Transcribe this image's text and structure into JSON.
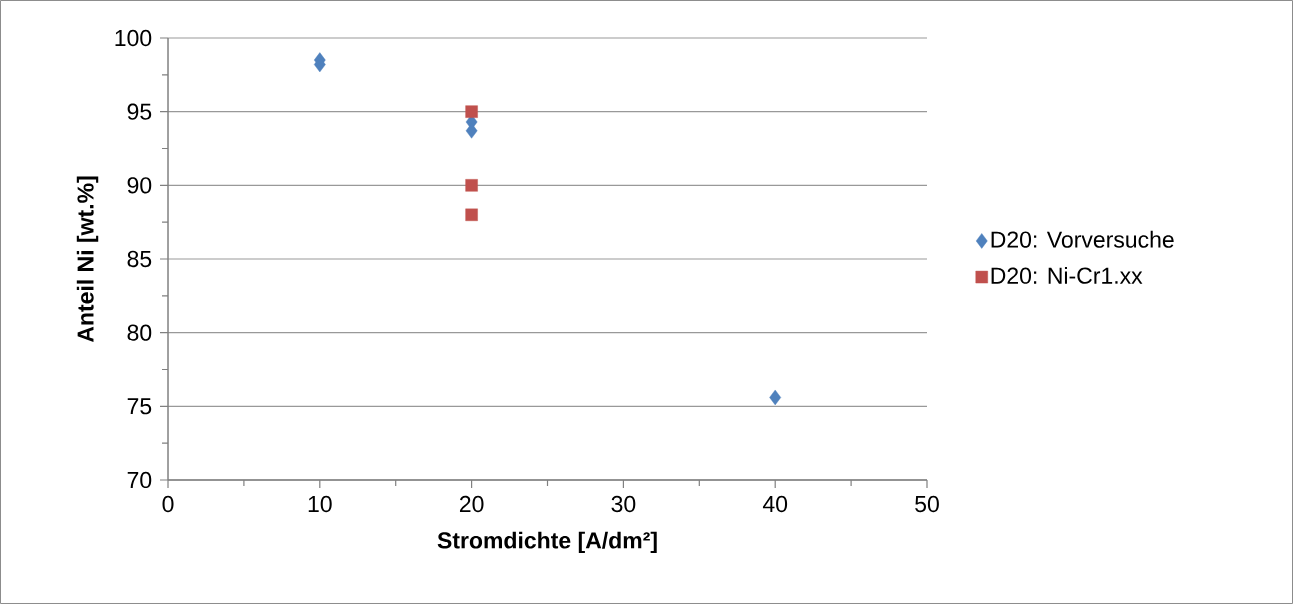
{
  "chart_data": {
    "type": "scatter",
    "xlabel": "Stromdichte [A/dm²]",
    "ylabel": "Anteil Ni [wt.%]",
    "series": [
      {
        "name": "D20: Vorversuche",
        "color": "#4f81bd",
        "marker": "diamond",
        "x": [
          10,
          10,
          20,
          20,
          40
        ],
        "values": [
          98.5,
          98.2,
          94.3,
          93.7,
          75.6
        ]
      },
      {
        "name": "D20: Ni-Cr1.xx",
        "color": "#c0504d",
        "marker": "square",
        "x": [
          20,
          20,
          20
        ],
        "values": [
          95,
          90,
          88
        ]
      }
    ],
    "xlim": [
      0,
      50
    ],
    "xticks": [
      0,
      10,
      20,
      30,
      40,
      50
    ],
    "ylim": [
      70,
      100
    ],
    "yticks": [
      70,
      75,
      80,
      85,
      90,
      95,
      100
    ],
    "grid": "y",
    "legend": "right"
  }
}
